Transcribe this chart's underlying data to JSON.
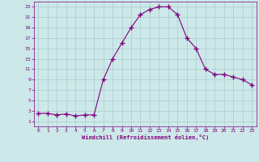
{
  "x": [
    0,
    1,
    2,
    3,
    4,
    5,
    6,
    7,
    8,
    9,
    10,
    11,
    12,
    13,
    14,
    15,
    16,
    17,
    18,
    19,
    20,
    21,
    22,
    23
  ],
  "y": [
    2.5,
    2.5,
    2.2,
    2.4,
    2.0,
    2.2,
    2.2,
    9.0,
    13.0,
    16.0,
    19.0,
    21.5,
    22.5,
    23.0,
    23.0,
    21.5,
    17.0,
    15.0,
    11.0,
    10.0,
    10.0,
    9.5,
    9.0,
    8.0
  ],
  "line_color": "#800080",
  "marker": "+",
  "marker_size": 4,
  "bg_color": "#cce8e8",
  "grid_color": "#aacccc",
  "xlabel": "Windchill (Refroidissement éolien,°C)",
  "xlabel_color": "#800080",
  "tick_color": "#800080",
  "xlim": [
    -0.5,
    23.5
  ],
  "ylim": [
    0,
    24
  ],
  "yticks": [
    1,
    3,
    5,
    7,
    9,
    11,
    13,
    15,
    17,
    19,
    21,
    23
  ],
  "xticks": [
    0,
    1,
    2,
    3,
    4,
    5,
    6,
    7,
    8,
    9,
    10,
    11,
    12,
    13,
    14,
    15,
    16,
    17,
    18,
    19,
    20,
    21,
    22,
    23
  ]
}
